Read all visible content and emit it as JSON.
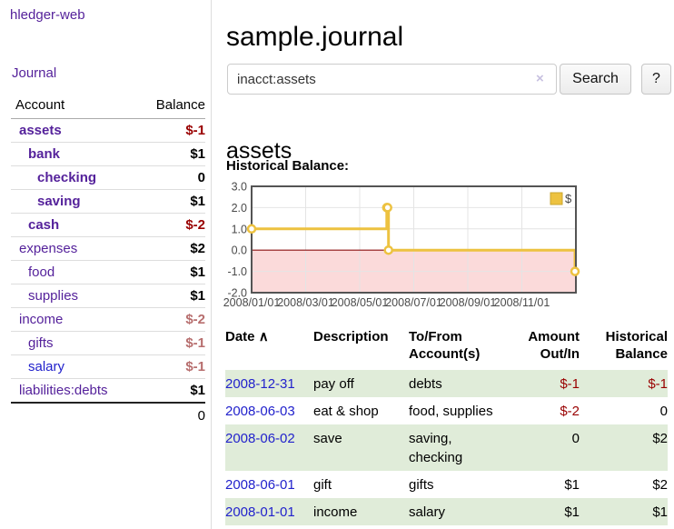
{
  "app": {
    "title": "hledger-web"
  },
  "sidebar": {
    "journal_link": "Journal",
    "table": {
      "headers": {
        "account": "Account",
        "balance": "Balance"
      },
      "rows": [
        {
          "account": "assets",
          "balance": "$-1",
          "indent": 1,
          "bold": true,
          "balance_color": "negative"
        },
        {
          "account": "bank",
          "balance": "$1",
          "indent": 2,
          "bold": true,
          "balance_color": "normal"
        },
        {
          "account": "checking",
          "balance": "0",
          "indent": 3,
          "bold": true,
          "balance_color": "normal"
        },
        {
          "account": "saving",
          "balance": "$1",
          "indent": 3,
          "bold": true,
          "balance_color": "normal"
        },
        {
          "account": "cash",
          "balance": "$-2",
          "indent": 2,
          "bold": true,
          "balance_color": "negative"
        },
        {
          "account": "expenses",
          "balance": "$2",
          "indent": 1,
          "bold": false,
          "balance_color": "normal"
        },
        {
          "account": "food",
          "balance": "$1",
          "indent": 2,
          "bold": false,
          "balance_color": "normal"
        },
        {
          "account": "supplies",
          "balance": "$1",
          "indent": 2,
          "bold": false,
          "balance_color": "normal"
        },
        {
          "account": "income",
          "balance": "$-2",
          "indent": 1,
          "bold": false,
          "balance_color": "negative-soft"
        },
        {
          "account": "gifts",
          "balance": "$-1",
          "indent": 2,
          "bold": false,
          "balance_color": "negative-soft"
        },
        {
          "account": "salary",
          "balance": "$-1",
          "indent": 2,
          "bold": false,
          "balance_color": "negative-soft",
          "link_color": "blue"
        },
        {
          "account": "liabilities:debts",
          "balance": "$1",
          "indent": 1,
          "bold": false,
          "balance_color": "normal"
        }
      ],
      "total": "0"
    }
  },
  "main": {
    "title": "sample.journal",
    "search": {
      "value": "inacct:assets",
      "clear_icon": "×",
      "button": "Search",
      "help_button": "?"
    },
    "account_heading": "assets",
    "chart_label": "Historical Balance:"
  },
  "chart_data": {
    "type": "line",
    "style": "step",
    "title": "Historical Balance",
    "series": [
      {
        "name": "$",
        "points": [
          [
            "2008-01-01",
            1
          ],
          [
            "2008-06-01",
            2
          ],
          [
            "2008-06-02",
            2
          ],
          [
            "2008-06-03",
            0
          ],
          [
            "2008-12-31",
            -1
          ]
        ]
      }
    ],
    "ylim": [
      -2,
      3
    ],
    "ytick_labels": [
      "3.0",
      "2.0",
      "1.0",
      "0.0",
      "-1.0",
      "-2.0"
    ],
    "ytick_values": [
      3,
      2,
      1,
      0,
      -1,
      -2
    ],
    "xtick_labels": [
      "2008/01/01",
      "2008/03/01",
      "2008/05/01",
      "2008/07/01",
      "2008/09/01",
      "2008/11/01"
    ],
    "xrange": [
      "2008-01-01",
      "2009-01-01"
    ],
    "legend": {
      "label": "$",
      "position": "top-right"
    },
    "grid": true,
    "negative_region_shaded": true,
    "colors": {
      "line": "#edc240",
      "marker_fill": "#ffffff",
      "negative_fill": "#fbdada",
      "zero_line": "#8f1010",
      "gridline": "#e4e4e4",
      "border": "#545454"
    }
  },
  "register": {
    "headers": {
      "date": "Date",
      "sort_icon": "∧",
      "description": "Description",
      "account": "To/From Account(s)",
      "amount": "Amount Out/In",
      "balance": "Historical Balance"
    },
    "rows": [
      {
        "date": "2008-12-31",
        "description": "pay off",
        "accounts": "debts",
        "amount": "$-1",
        "amount_color": "negative",
        "balance": "$-1",
        "balance_color": "negative"
      },
      {
        "date": "2008-06-03",
        "description": "eat & shop",
        "accounts": "food, supplies",
        "amount": "$-2",
        "amount_color": "negative",
        "balance": "0",
        "balance_color": "normal"
      },
      {
        "date": "2008-06-02",
        "description": "save",
        "accounts": "saving,\nchecking",
        "amount": "0",
        "amount_color": "normal",
        "balance": "$2",
        "balance_color": "normal"
      },
      {
        "date": "2008-06-01",
        "description": "gift",
        "accounts": "gifts",
        "amount": "$1",
        "amount_color": "normal",
        "balance": "$2",
        "balance_color": "normal"
      },
      {
        "date": "2008-01-01",
        "description": "income",
        "accounts": "salary",
        "amount": "$1",
        "amount_color": "normal",
        "balance": "$1",
        "balance_color": "normal"
      }
    ]
  }
}
